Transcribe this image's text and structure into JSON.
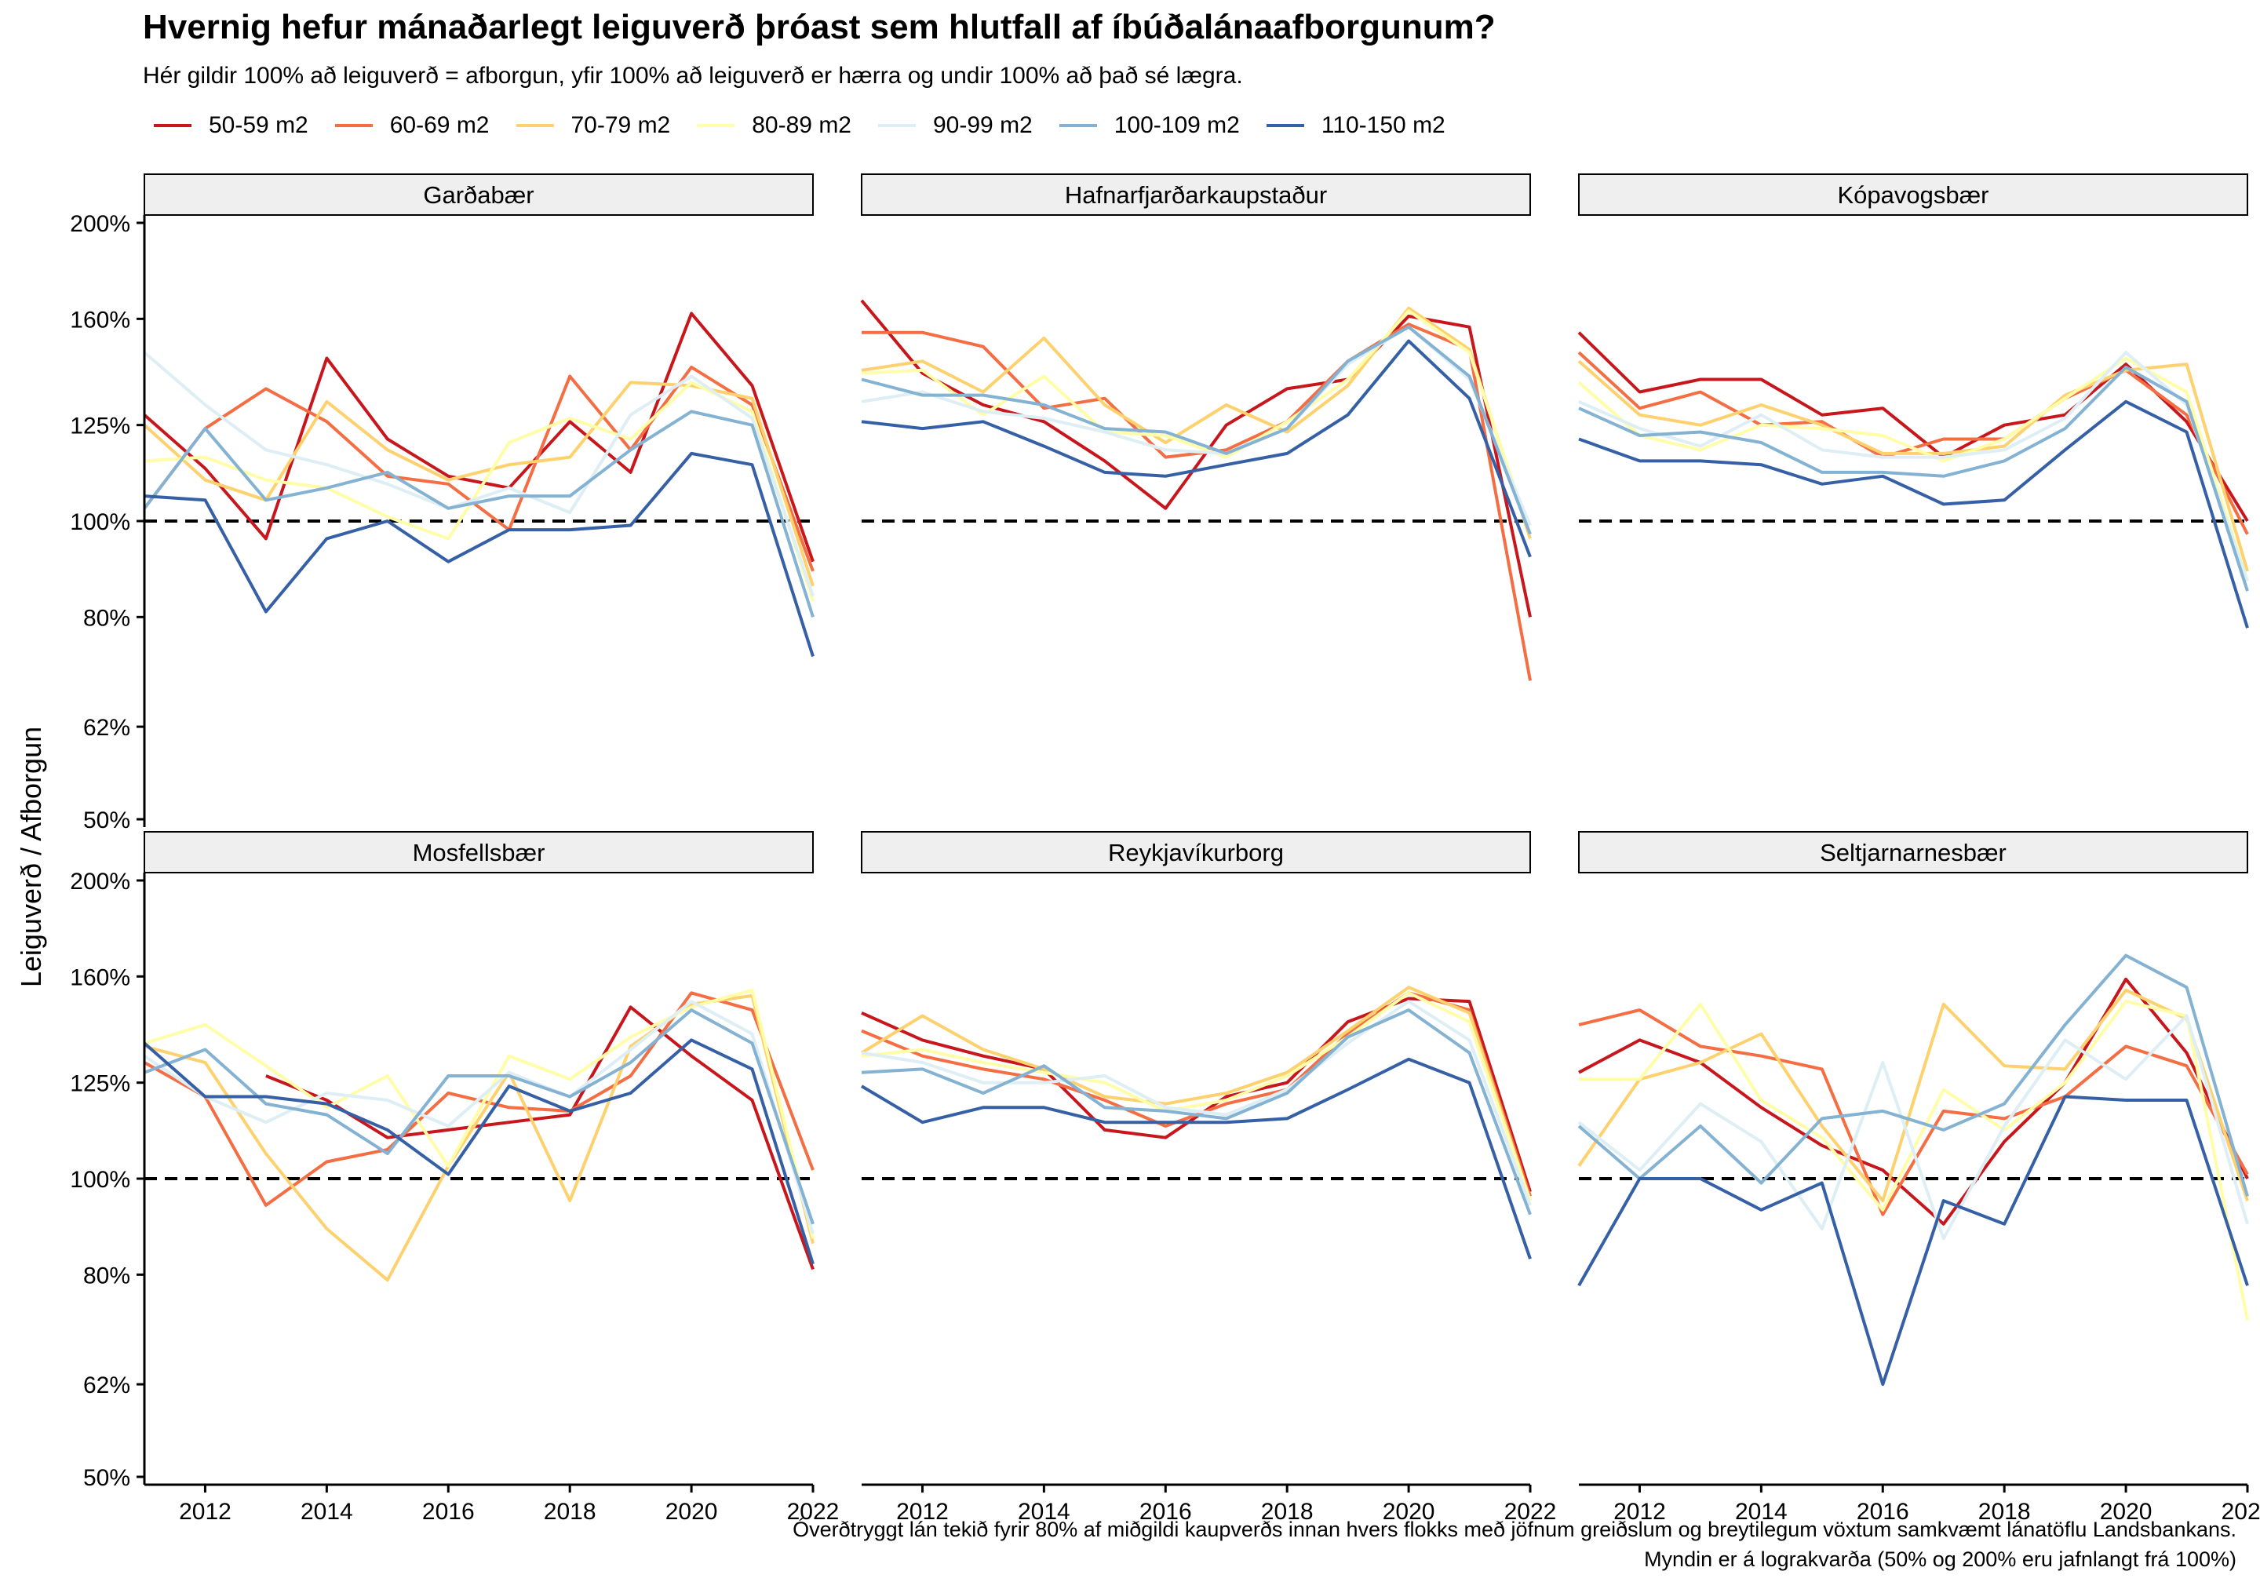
{
  "title": "Hvernig hefur mánaðarlegt leiguverð þróast sem hlutfall af íbúðalánaafborgunum?",
  "subtitle": "Hér gildir 100% að leiguverð = afborgun, yfir 100% að leiguverð er hærra og undir 100% að það sé lægra.",
  "caption_line1": "Óverðtryggt lán tekið fyrir 80% af miðgildi kaupverðs innan hvers flokks með jöfnum greiðslum og breytilegum vöxtum samkvæmt lánatöflu Landsbankans.",
  "caption_line2": "Myndin er á lograkvarða (50% og 200% eru jafnlangt frá 100%)",
  "chart_data": {
    "type": "line",
    "facet_layout": "2 rows x 3 columns",
    "y_scale": "log",
    "ylabel": "Leiguverð / Afborgun",
    "ylim": [
      50,
      200
    ],
    "y_ticks": [
      50,
      62,
      80,
      100,
      125,
      160,
      200
    ],
    "y_tick_labels": [
      "50%",
      "62%",
      "80%",
      "100%",
      "125%",
      "160%",
      "200%"
    ],
    "reference_line": 100,
    "xlim": [
      2011,
      2022
    ],
    "x_ticks": [
      2012,
      2014,
      2016,
      2018,
      2020,
      2022
    ],
    "x_tick_labels": [
      "2012",
      "2014",
      "2016",
      "2018",
      "2020",
      "2022"
    ],
    "grid": false,
    "legend_position": "top-left",
    "x": [
      2011,
      2012,
      2013,
      2014,
      2015,
      2016,
      2017,
      2018,
      2019,
      2020,
      2021,
      2022
    ],
    "series_names": [
      "50-59 m2",
      "60-69 m2",
      "70-79 m2",
      "80-89 m2",
      "90-99 m2",
      "100-109 m2",
      "110-150 m2"
    ],
    "series_colors": [
      "#c8161d",
      "#f46d43",
      "#fdd16e",
      "#fffda8",
      "#ddeef5",
      "#84b2d3",
      "#3660a6"
    ],
    "facets": [
      {
        "name": "Garðabær",
        "series": [
          [
            128,
            113,
            96,
            146,
            121,
            111,
            108,
            126,
            112,
            162,
            137,
            91
          ],
          [
            103,
            124,
            136,
            126,
            111,
            109,
            98,
            140,
            118,
            143,
            131,
            89
          ],
          [
            125,
            110,
            105,
            132,
            118,
            110,
            114,
            116,
            138,
            137,
            133,
            86
          ],
          [
            115,
            116,
            110,
            108,
            101,
            96,
            120,
            127,
            121,
            138,
            129,
            83
          ],
          [
            148,
            131,
            118,
            114,
            109,
            103,
            108,
            102,
            128,
            140,
            127,
            84
          ],
          [
            103,
            124,
            105,
            108,
            112,
            103,
            106,
            106,
            118,
            129,
            125,
            80
          ],
          [
            106,
            105,
            81,
            96,
            100,
            91,
            98,
            98,
            99,
            117,
            114,
            73
          ]
        ]
      },
      {
        "name": "Hafnarfjarðarkaupstaður",
        "series": [
          [
            167,
            141,
            131,
            126,
            115,
            103,
            125,
            136,
            139,
            161,
            157,
            80
          ],
          [
            155,
            155,
            150,
            130,
            133,
            116,
            118,
            126,
            145,
            158,
            149,
            69
          ],
          [
            142,
            145,
            135,
            153,
            131,
            120,
            131,
            123,
            137,
            164,
            149,
            96
          ],
          [
            141,
            142,
            128,
            140,
            123,
            122,
            116,
            126,
            139,
            163,
            148,
            97
          ],
          [
            132,
            135,
            129,
            127,
            123,
            118,
            117,
            124,
            144,
            157,
            139,
            99
          ],
          [
            139,
            134,
            134,
            131,
            124,
            123,
            117,
            124,
            145,
            157,
            140,
            97
          ],
          [
            126,
            124,
            126,
            119,
            112,
            111,
            114,
            117,
            128,
            152,
            133,
            92
          ]
        ]
      },
      {
        "name": "Kópavogsbær",
        "series": [
          [
            155,
            135,
            139,
            139,
            128,
            130,
            116,
            125,
            128,
            144,
            126,
            100
          ],
          [
            148,
            130,
            135,
            125,
            126,
            116,
            121,
            121,
            133,
            142,
            128,
            97
          ],
          [
            145,
            128,
            125,
            131,
            125,
            117,
            117,
            119,
            134,
            142,
            144,
            89
          ],
          [
            138,
            122,
            118,
            125,
            124,
            122,
            115,
            121,
            133,
            146,
            135,
            87
          ],
          [
            132,
            124,
            119,
            128,
            118,
            116,
            116,
            118,
            127,
            148,
            131,
            87
          ],
          [
            130,
            122,
            123,
            120,
            112,
            112,
            111,
            115,
            124,
            143,
            132,
            85
          ],
          [
            121,
            115,
            115,
            114,
            109,
            111,
            104,
            105,
            118,
            132,
            123,
            78
          ]
        ]
      },
      {
        "name": "Mosfellsbær",
        "series": [
          [
            null,
            null,
            127,
            120,
            110,
            112,
            114,
            116,
            149,
            133,
            120,
            81
          ],
          [
            131,
            121,
            94,
            104,
            107,
            122,
            118,
            117,
            127,
            154,
            148,
            102
          ],
          [
            136,
            131,
            106,
            89,
            79,
            103,
            128,
            95,
            136,
            150,
            153,
            86
          ],
          [
            137,
            143,
            130,
            118,
            127,
            103,
            133,
            126,
            139,
            149,
            155,
            87
          ],
          [
            133,
            121,
            114,
            122,
            120,
            113,
            128,
            121,
            135,
            151,
            140,
            88
          ],
          [
            128,
            135,
            119,
            116,
            106,
            127,
            127,
            121,
            131,
            148,
            137,
            90
          ],
          [
            137,
            121,
            121,
            119,
            112,
            101,
            124,
            117,
            122,
            138,
            129,
            82
          ]
        ]
      },
      {
        "name": "Reykjavíkurborg",
        "series": [
          [
            147,
            138,
            133,
            129,
            112,
            110,
            121,
            125,
            144,
            152,
            151,
            97
          ],
          [
            141,
            133,
            129,
            126,
            120,
            113,
            119,
            123,
            140,
            154,
            148,
            96
          ],
          [
            134,
            146,
            135,
            129,
            121,
            119,
            122,
            128,
            141,
            156,
            147,
            95
          ],
          [
            133,
            135,
            131,
            128,
            125,
            117,
            120,
            127,
            139,
            154,
            144,
            95
          ],
          [
            134,
            131,
            125,
            125,
            127,
            118,
            116,
            123,
            137,
            151,
            138,
            94
          ],
          [
            128,
            129,
            122,
            130,
            118,
            117,
            115,
            122,
            139,
            148,
            134,
            92
          ],
          [
            124,
            114,
            118,
            118,
            114,
            114,
            114,
            115,
            123,
            132,
            125,
            83
          ]
        ]
      },
      {
        "name": "Seltjarnarnesbær",
        "series": [
          [
            128,
            138,
            131,
            118,
            108,
            102,
            90,
            109,
            125,
            159,
            134,
            100
          ],
          [
            143,
            148,
            136,
            133,
            129,
            92,
            117,
            115,
            121,
            136,
            130,
            101
          ],
          [
            103,
            126,
            131,
            140,
            113,
            95,
            150,
            130,
            129,
            155,
            145,
            95
          ],
          [
            126,
            126,
            150,
            120,
            110,
            93,
            123,
            112,
            125,
            151,
            146,
            72
          ],
          [
            114,
            102,
            119,
            109,
            89,
            131,
            87,
            113,
            138,
            126,
            146,
            90
          ],
          [
            113,
            100,
            113,
            99,
            115,
            117,
            112,
            119,
            143,
            168,
            156,
            96
          ],
          [
            78,
            100,
            100,
            93,
            99,
            62,
            95,
            90,
            121,
            120,
            120,
            78
          ]
        ]
      }
    ]
  }
}
